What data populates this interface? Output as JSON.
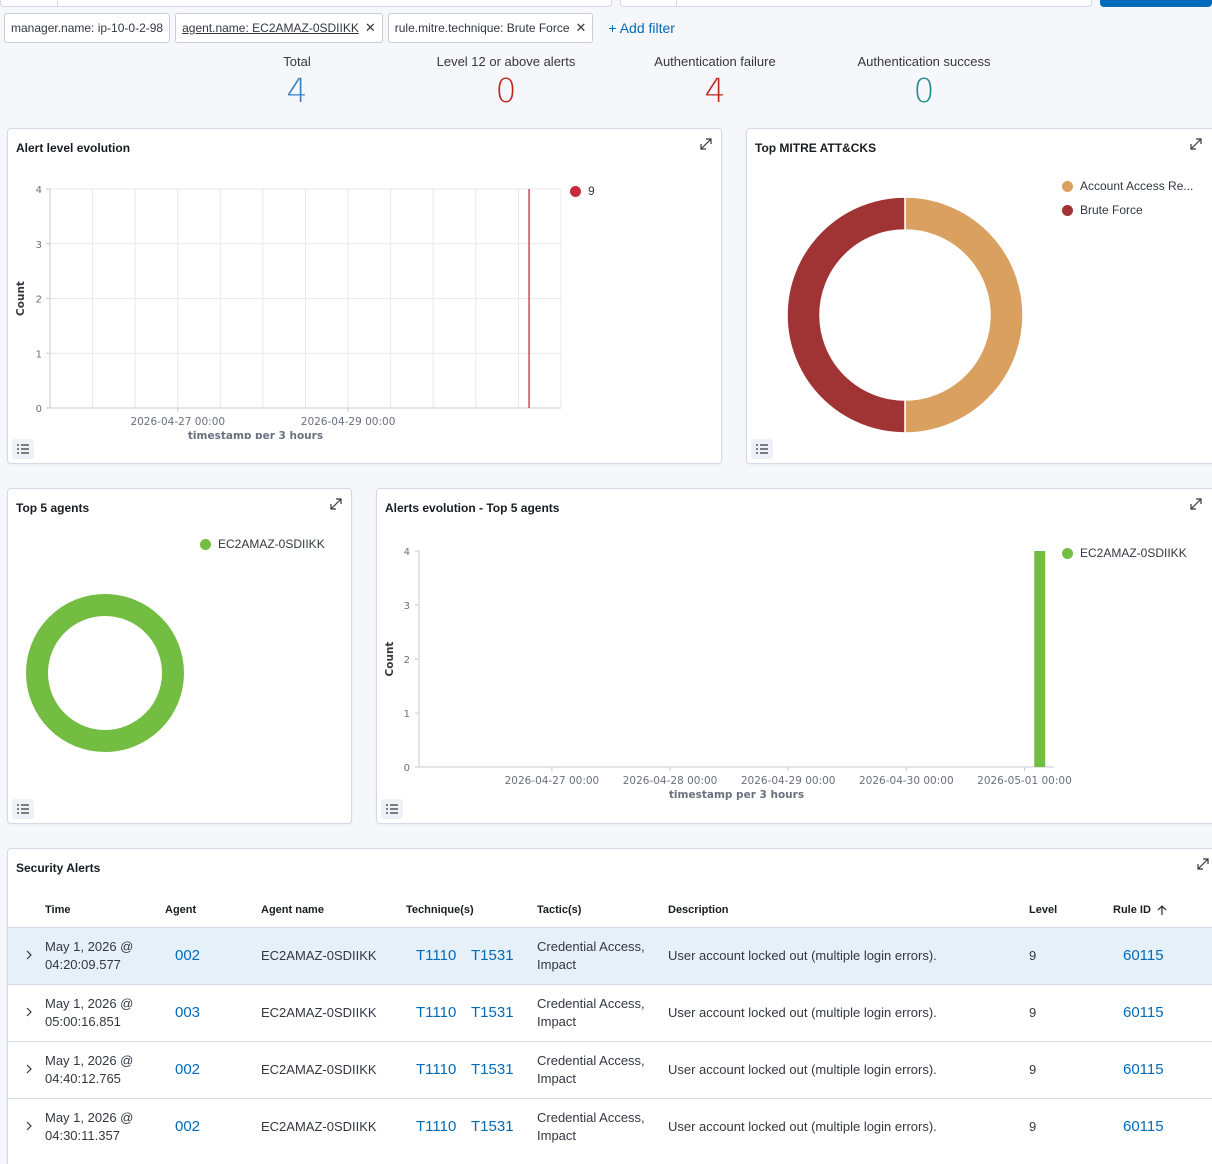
{
  "filters": [
    {
      "label": "manager.name: ip-10-0-2-98",
      "removable": false,
      "underlined": false
    },
    {
      "label": "agent.name: EC2AMAZ-0SDIIKK",
      "removable": true,
      "underlined": true
    },
    {
      "label": "rule.mitre.technique: Brute Force",
      "removable": true,
      "underlined": false
    }
  ],
  "add_filter_label": "+ Add filter",
  "stats": [
    {
      "title": "Total",
      "value": "4",
      "color": "#3a7fc1"
    },
    {
      "title": "Level 12 or above alerts",
      "value": "0",
      "color": "#bd271e"
    },
    {
      "title": "Authentication failure",
      "value": "4",
      "color": "#bd271e"
    },
    {
      "title": "Authentication success",
      "value": "0",
      "color": "#1d8f8a"
    }
  ],
  "panels": {
    "alert_level_evolution": {
      "title": "Alert level evolution"
    },
    "top_mitre": {
      "title": "Top MITRE ATT&CKS"
    },
    "top_agents": {
      "title": "Top 5 agents"
    },
    "alerts_evolution": {
      "title": "Alerts evolution - Top 5 agents"
    },
    "security_alerts": {
      "title": "Security Alerts"
    }
  },
  "chart_data": [
    {
      "type": "line",
      "title": "Alert level evolution",
      "xlabel": "timestamp per 3 hours",
      "ylabel": "Count",
      "ylim": [
        0,
        4
      ],
      "yticks": [
        "0",
        "1",
        "2",
        "3",
        "4"
      ],
      "xticks": [
        "2026-04-27 00:00",
        "2026-04-29 00:00"
      ],
      "series": [
        {
          "name": "9",
          "color": "#c92b3a",
          "x": [
            "2026-05-01 03:00"
          ],
          "values": [
            4
          ]
        }
      ],
      "grid": true,
      "legend": "right"
    },
    {
      "type": "pie",
      "title": "Top MITRE ATT&CKS",
      "donut": true,
      "slices": [
        {
          "label": "Account Access Re...",
          "value": 4,
          "color": "#d9a05f"
        },
        {
          "label": "Brute Force",
          "value": 4,
          "color": "#a03333"
        }
      ],
      "legend": "top-right"
    },
    {
      "type": "pie",
      "title": "Top 5 agents",
      "donut": true,
      "slices": [
        {
          "label": "EC2AMAZ-0SDIIKK",
          "value": 4,
          "color": "#72bd42"
        }
      ],
      "legend": "top-right"
    },
    {
      "type": "bar",
      "title": "Alerts evolution - Top 5 agents",
      "xlabel": "timestamp per 3 hours",
      "ylabel": "Count",
      "ylim": [
        0,
        4
      ],
      "yticks": [
        "0",
        "1",
        "2",
        "3",
        "4"
      ],
      "xticks": [
        "2026-04-27 00:00",
        "2026-04-28 00:00",
        "2026-04-29 00:00",
        "2026-04-30 00:00",
        "2026-05-01 00:00"
      ],
      "series": [
        {
          "name": "EC2AMAZ-0SDIIKK",
          "color": "#72bd42",
          "x": [
            "2026-05-01 03:00"
          ],
          "values": [
            4
          ]
        }
      ],
      "grid": false,
      "legend": "top-right"
    }
  ],
  "table": {
    "columns": [
      "Time",
      "Agent",
      "Agent name",
      "Technique(s)",
      "Tactic(s)",
      "Description",
      "Level",
      "Rule ID"
    ],
    "sort_column": "Rule ID",
    "rows": [
      {
        "time1": "May 1, 2026 @",
        "time2": "04:20:09.577",
        "agent": "002",
        "agent_name": "EC2AMAZ-0SDIIKK",
        "tech1": "T1110",
        "tech2": "T1531",
        "tactic1": "Credential Access,",
        "tactic2": "Impact",
        "description": "User account locked out (multiple login errors).",
        "level": "9",
        "rule_id": "60115",
        "selected": true
      },
      {
        "time1": "May 1, 2026 @",
        "time2": "05:00:16.851",
        "agent": "003",
        "agent_name": "EC2AMAZ-0SDIIKK",
        "tech1": "T1110",
        "tech2": "T1531",
        "tactic1": "Credential Access,",
        "tactic2": "Impact",
        "description": "User account locked out (multiple login errors).",
        "level": "9",
        "rule_id": "60115",
        "selected": false
      },
      {
        "time1": "May 1, 2026 @",
        "time2": "04:40:12.765",
        "agent": "002",
        "agent_name": "EC2AMAZ-0SDIIKK",
        "tech1": "T1110",
        "tech2": "T1531",
        "tactic1": "Credential Access,",
        "tactic2": "Impact",
        "description": "User account locked out (multiple login errors).",
        "level": "9",
        "rule_id": "60115",
        "selected": false
      },
      {
        "time1": "May 1, 2026 @",
        "time2": "04:30:11.357",
        "agent": "002",
        "agent_name": "EC2AMAZ-0SDIIKK",
        "tech1": "T1110",
        "tech2": "T1531",
        "tactic1": "Credential Access,",
        "tactic2": "Impact",
        "description": "User account locked out (multiple login errors).",
        "level": "9",
        "rule_id": "60115",
        "selected": false
      }
    ]
  }
}
